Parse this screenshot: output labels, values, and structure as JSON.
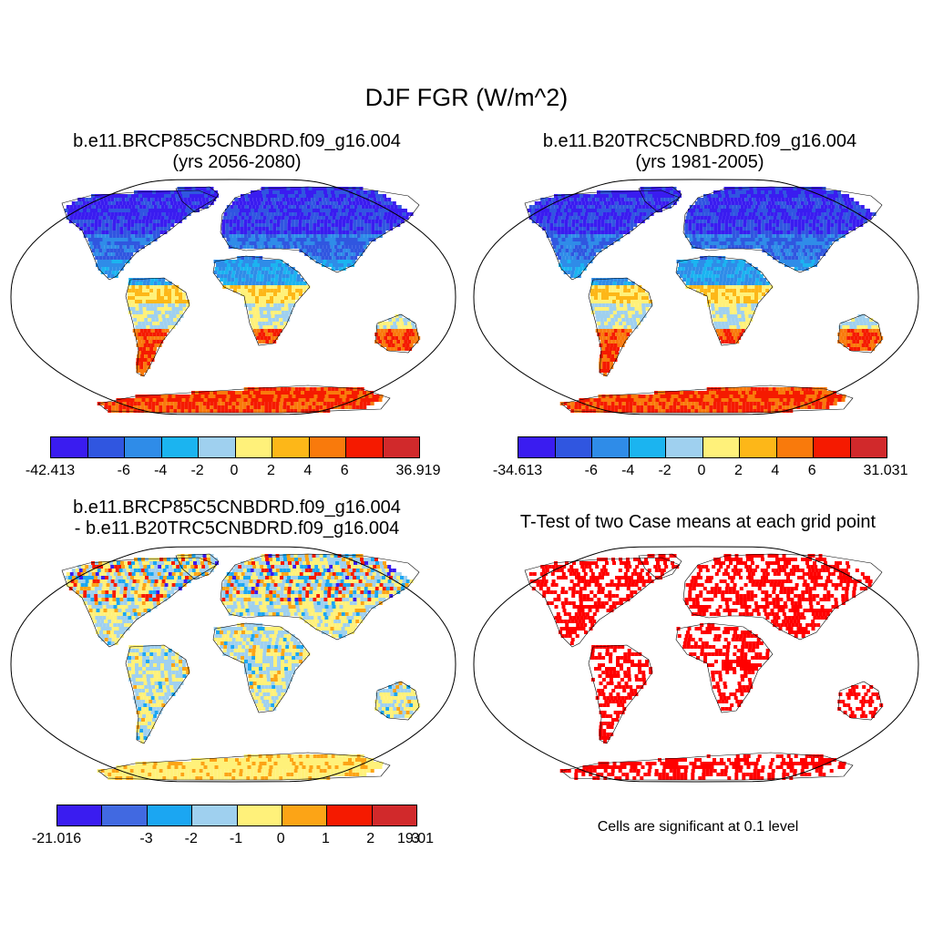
{
  "figure": {
    "title": "DJF FGR (W/m^2)",
    "panels": [
      {
        "title_line1": "b.e11.BRCP85C5CNBDRD.f09_g16.004",
        "title_line2": "(yrs 2056-2080)",
        "colorbar": {
          "colors": [
            "#3a1cf0",
            "#3056e0",
            "#2f8ce8",
            "#1bb4f0",
            "#9fd0ef",
            "#fff17a",
            "#fdb718",
            "#f97a0c",
            "#f51a00",
            "#d1292b"
          ],
          "labels": [
            "-42.413",
            "-6",
            "-4",
            "-2",
            "0",
            "2",
            "4",
            "6",
            "36.919"
          ]
        }
      },
      {
        "title_line1": "b.e11.B20TRC5CNBDRD.f09_g16.004",
        "title_line2": "(yrs 1981-2005)",
        "colorbar": {
          "colors": [
            "#3a1cf0",
            "#3056e0",
            "#2f8ce8",
            "#1bb4f0",
            "#9fd0ef",
            "#fff17a",
            "#fdb718",
            "#f97a0c",
            "#f51a00",
            "#d1292b"
          ],
          "labels": [
            "-34.613",
            "-6",
            "-4",
            "-2",
            "0",
            "2",
            "4",
            "6",
            "31.031"
          ]
        }
      },
      {
        "title_line1": "b.e11.BRCP85C5CNBDRD.f09_g16.004",
        "title_line2": "- b.e11.B20TRC5CNBDRD.f09_g16.004",
        "colorbar": {
          "colors": [
            "#3a1cf0",
            "#4169e1",
            "#1ba6f2",
            "#9fd0ef",
            "#fff17a",
            "#fca416",
            "#f51a00",
            "#d1292b"
          ],
          "labels": [
            "-21.016",
            "-3",
            "-2",
            "-1",
            "0",
            "1",
            "2",
            "3",
            "19.01"
          ]
        }
      },
      {
        "title_line1": "T-Test of two Case means at each grid point",
        "note": "Cells are significant at 0.1 level",
        "significance_color": "#ff0000"
      }
    ]
  }
}
